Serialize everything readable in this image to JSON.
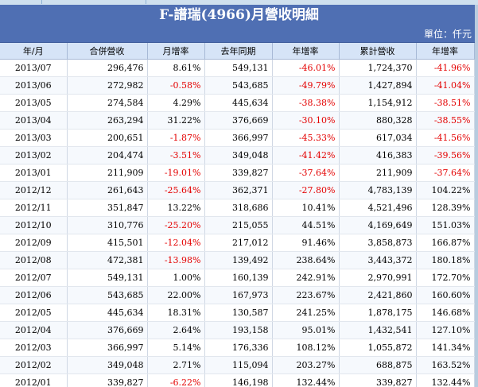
{
  "title": "F-譜瑞(4966)月營收明細",
  "unit": "單位：仟元",
  "columns": [
    "年/月",
    "合併營收",
    "月增率",
    "去年同期",
    "年增率",
    "累計營收",
    "年增率"
  ],
  "rows": [
    [
      "2013/07",
      "296,476",
      "8.61%",
      "549,131",
      "-46.01%",
      "1,724,370",
      "-41.96%"
    ],
    [
      "2013/06",
      "272,982",
      "-0.58%",
      "543,685",
      "-49.79%",
      "1,427,894",
      "-41.04%"
    ],
    [
      "2013/05",
      "274,584",
      "4.29%",
      "445,634",
      "-38.38%",
      "1,154,912",
      "-38.51%"
    ],
    [
      "2013/04",
      "263,294",
      "31.22%",
      "376,669",
      "-30.10%",
      "880,328",
      "-38.55%"
    ],
    [
      "2013/03",
      "200,651",
      "-1.87%",
      "366,997",
      "-45.33%",
      "617,034",
      "-41.56%"
    ],
    [
      "2013/02",
      "204,474",
      "-3.51%",
      "349,048",
      "-41.42%",
      "416,383",
      "-39.56%"
    ],
    [
      "2013/01",
      "211,909",
      "-19.01%",
      "339,827",
      "-37.64%",
      "211,909",
      "-37.64%"
    ],
    [
      "2012/12",
      "261,643",
      "-25.64%",
      "362,371",
      "-27.80%",
      "4,783,139",
      "104.22%"
    ],
    [
      "2012/11",
      "351,847",
      "13.22%",
      "318,686",
      "10.41%",
      "4,521,496",
      "128.39%"
    ],
    [
      "2012/10",
      "310,776",
      "-25.20%",
      "215,055",
      "44.51%",
      "4,169,649",
      "151.03%"
    ],
    [
      "2012/09",
      "415,501",
      "-12.04%",
      "217,012",
      "91.46%",
      "3,858,873",
      "166.87%"
    ],
    [
      "2012/08",
      "472,381",
      "-13.98%",
      "139,492",
      "238.64%",
      "3,443,372",
      "180.18%"
    ],
    [
      "2012/07",
      "549,131",
      "1.00%",
      "160,139",
      "242.91%",
      "2,970,991",
      "172.70%"
    ],
    [
      "2012/06",
      "543,685",
      "22.00%",
      "167,973",
      "223.67%",
      "2,421,860",
      "160.60%"
    ],
    [
      "2012/05",
      "445,634",
      "18.31%",
      "130,587",
      "241.25%",
      "1,878,175",
      "146.68%"
    ],
    [
      "2012/04",
      "376,669",
      "2.64%",
      "193,158",
      "95.01%",
      "1,432,541",
      "127.10%"
    ],
    [
      "2012/03",
      "366,997",
      "5.14%",
      "176,336",
      "108.12%",
      "1,055,872",
      "141.34%"
    ],
    [
      "2012/02",
      "349,048",
      "2.71%",
      "115,094",
      "203.27%",
      "688,875",
      "163.52%"
    ],
    [
      "2012/01",
      "339,827",
      "-6.22%",
      "146,198",
      "132.44%",
      "339,827",
      "132.44%"
    ]
  ],
  "colors": {
    "header_bg": "#4f6fb3",
    "col_header_bg": "#d6e4f7",
    "negative": "#e40000"
  }
}
